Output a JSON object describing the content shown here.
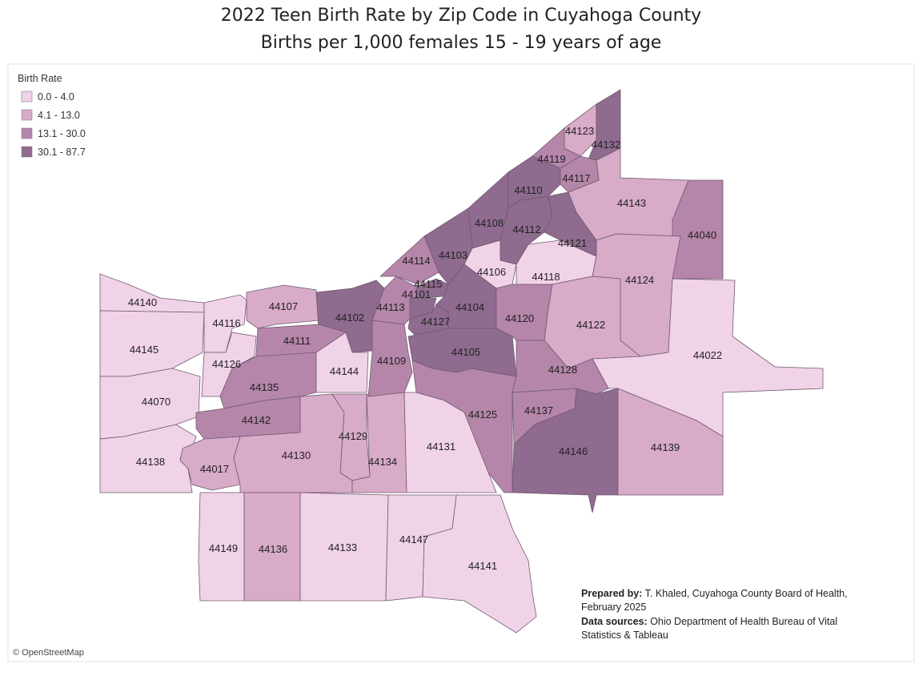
{
  "title": "2022 Teen Birth Rate by Zip Code in Cuyahoga County",
  "subtitle": "Births per 1,000 females 15 - 19 years of age",
  "legend": {
    "title": "Birth Rate",
    "items": [
      {
        "label": "0.0 - 4.0",
        "color": "#f1d3e8"
      },
      {
        "label": "4.1 - 13.0",
        "color": "#d8abc9"
      },
      {
        "label": "13.1 - 30.0",
        "color": "#b686aa"
      },
      {
        "label": "30.1 - 87.7",
        "color": "#8f6b8f"
      }
    ]
  },
  "zips": [
    {
      "zip": "44140",
      "range": "0.0 - 4.0"
    },
    {
      "zip": "44145",
      "range": "0.0 - 4.0"
    },
    {
      "zip": "44070",
      "range": "0.0 - 4.0"
    },
    {
      "zip": "44138",
      "range": "0.0 - 4.0"
    },
    {
      "zip": "44116",
      "range": "0.0 - 4.0"
    },
    {
      "zip": "44126",
      "range": "0.0 - 4.0"
    },
    {
      "zip": "44107",
      "range": "4.1 - 13.0"
    },
    {
      "zip": "44102",
      "range": "30.1 - 87.7"
    },
    {
      "zip": "44111",
      "range": "13.1 - 30.0"
    },
    {
      "zip": "44135",
      "range": "13.1 - 30.0"
    },
    {
      "zip": "44144",
      "range": "0.0 - 4.0"
    },
    {
      "zip": "44142",
      "range": "13.1 - 30.0"
    },
    {
      "zip": "44017",
      "range": "4.1 - 13.0"
    },
    {
      "zip": "44130",
      "range": "4.1 - 13.0"
    },
    {
      "zip": "44129",
      "range": "4.1 - 13.0"
    },
    {
      "zip": "44134",
      "range": "4.1 - 13.0"
    },
    {
      "zip": "44109",
      "range": "13.1 - 30.0"
    },
    {
      "zip": "44113",
      "range": "13.1 - 30.0"
    },
    {
      "zip": "44114",
      "range": "13.1 - 30.0"
    },
    {
      "zip": "44103",
      "range": "30.1 - 87.7"
    },
    {
      "zip": "44115",
      "range": "30.1 - 87.7"
    },
    {
      "zip": "44101",
      "range": "30.1 - 87.7"
    },
    {
      "zip": "44127",
      "range": "30.1 - 87.7"
    },
    {
      "zip": "44104",
      "range": "30.1 - 87.7"
    },
    {
      "zip": "44108",
      "range": "30.1 - 87.7"
    },
    {
      "zip": "44106",
      "range": "0.0 - 4.0"
    },
    {
      "zip": "44105",
      "range": "30.1 - 87.7"
    },
    {
      "zip": "44120",
      "range": "13.1 - 30.0"
    },
    {
      "zip": "44118",
      "range": "0.0 - 4.0"
    },
    {
      "zip": "44112",
      "range": "30.1 - 87.7"
    },
    {
      "zip": "44110",
      "range": "30.1 - 87.7"
    },
    {
      "zip": "44119",
      "range": "13.1 - 30.0"
    },
    {
      "zip": "44123",
      "range": "4.1 - 13.0"
    },
    {
      "zip": "44132",
      "range": "30.1 - 87.7"
    },
    {
      "zip": "44117",
      "range": "13.1 - 30.0"
    },
    {
      "zip": "44121",
      "range": "30.1 - 87.7"
    },
    {
      "zip": "44143",
      "range": "4.1 - 13.0"
    },
    {
      "zip": "44040",
      "range": "13.1 - 30.0"
    },
    {
      "zip": "44124",
      "range": "4.1 - 13.0"
    },
    {
      "zip": "44122",
      "range": "4.1 - 13.0"
    },
    {
      "zip": "44022",
      "range": "0.0 - 4.0"
    },
    {
      "zip": "44128",
      "range": "13.1 - 30.0"
    },
    {
      "zip": "44125",
      "range": "13.1 - 30.0"
    },
    {
      "zip": "44131",
      "range": "0.0 - 4.0"
    },
    {
      "zip": "44137",
      "range": "13.1 - 30.0"
    },
    {
      "zip": "44146",
      "range": "30.1 - 87.7"
    },
    {
      "zip": "44139",
      "range": "4.1 - 13.0"
    },
    {
      "zip": "44149",
      "range": "0.0 - 4.0"
    },
    {
      "zip": "44136",
      "range": "4.1 - 13.0"
    },
    {
      "zip": "44133",
      "range": "0.0 - 4.0"
    },
    {
      "zip": "44147",
      "range": "0.0 - 4.0"
    },
    {
      "zip": "44141",
      "range": "0.0 - 4.0"
    }
  ],
  "notes": {
    "prepared_label": "Prepared by:",
    "prepared_text": "T. Khaled, Cuyahoga County Board of Health,",
    "prepared_text2": "February 2025",
    "sources_label": "Data sources:",
    "sources_text": "Ohio Department of Health Bureau of Vital",
    "sources_text2": "Statistics & Tableau"
  },
  "credit": "© OpenStreetMap"
}
